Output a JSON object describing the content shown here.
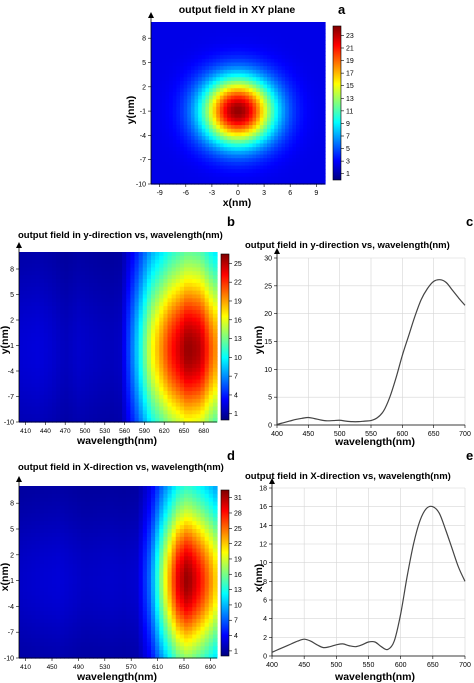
{
  "figure": {
    "colors": {
      "jet": [
        "#00007f",
        "#0000ff",
        "#007fff",
        "#00ffff",
        "#7fff7f",
        "#ffff00",
        "#ff7f00",
        "#ff0000",
        "#7f0000"
      ],
      "line": "#444444",
      "grid": "#d6d6d6"
    }
  },
  "panels": {
    "a": {
      "letter": "a",
      "chart_data": {
        "type": "heatmap",
        "title": "output field in XY plane",
        "xlabel": "x(nm)",
        "ylabel": "y(nm)",
        "x_ticks": [
          "-9",
          "-6",
          "-3",
          "0",
          "3",
          "6",
          "9"
        ],
        "y_ticks": [
          "8",
          "5",
          "2",
          "-1",
          "-4",
          "-7",
          "-10"
        ],
        "xlim": [
          -10,
          10
        ],
        "ylim": [
          -10,
          10
        ],
        "colorbar_ticks": [
          "23",
          "21",
          "19",
          "17",
          "15",
          "13",
          "11",
          "9",
          "7",
          "5",
          "3",
          "1"
        ],
        "colorbar_range": [
          0,
          24.5
        ],
        "field": {
          "shape": "gaussian",
          "center_x": 0,
          "center_y": -1,
          "sigma_x": 2.9,
          "sigma_y": 2.9,
          "peak": 24,
          "floor": 2.5
        }
      }
    },
    "b": {
      "letter": "b",
      "chart_data": {
        "type": "heatmap",
        "title": "output field in y-direction vs, wavelength(nm)",
        "xlabel": "wavelength(nm)",
        "ylabel": "y(nm)",
        "x_ticks": [
          "410",
          "440",
          "470",
          "500",
          "530",
          "560",
          "590",
          "620",
          "650",
          "680"
        ],
        "y_ticks": [
          "8",
          "5",
          "2",
          "-1",
          "-4",
          "-7",
          "-10"
        ],
        "xlim": [
          400,
          700
        ],
        "ylim": [
          -10,
          10
        ],
        "colorbar_ticks": [
          "25",
          "22",
          "19",
          "16",
          "13",
          "10",
          "7",
          "4",
          "1"
        ],
        "colorbar_range": [
          0,
          26.5
        ],
        "field": {
          "shape": "ridge",
          "center_y": -1.5,
          "sigma_y": 6.5,
          "peak": 26
        }
      }
    },
    "c": {
      "letter": "c",
      "chart_data": {
        "type": "line",
        "title": "output field in y-direction vs, wavelength(nm)",
        "xlabel": "wavelength(nm)",
        "ylabel": "y(nm)",
        "x_ticks": [
          "400",
          "450",
          "500",
          "550",
          "600",
          "650",
          "700"
        ],
        "y_ticks": [
          "0",
          "5",
          "10",
          "15",
          "20",
          "25",
          "30"
        ],
        "xlim": [
          400,
          700
        ],
        "ylim": [
          0,
          30
        ],
        "grid": true,
        "x": [
          400,
          410,
          420,
          430,
          440,
          450,
          460,
          470,
          480,
          490,
          500,
          510,
          520,
          530,
          540,
          550,
          560,
          570,
          580,
          590,
          600,
          610,
          620,
          630,
          640,
          650,
          660,
          670,
          680,
          690,
          700
        ],
        "y": [
          0.1,
          0.4,
          0.7,
          1.0,
          1.2,
          1.35,
          1.15,
          0.9,
          0.75,
          0.8,
          0.85,
          0.7,
          0.6,
          0.6,
          0.7,
          0.8,
          1.3,
          2.5,
          5.0,
          8.5,
          12.5,
          16.0,
          19.5,
          22.5,
          24.5,
          25.8,
          26.1,
          25.6,
          24.2,
          22.8,
          21.5
        ]
      }
    },
    "d": {
      "letter": "d",
      "chart_data": {
        "type": "heatmap",
        "title": "output field in X-direction vs, wavelength(nm)",
        "xlabel": "wavelength(nm)",
        "ylabel": "x(nm)",
        "x_ticks": [
          "410",
          "450",
          "490",
          "530",
          "570",
          "610",
          "650",
          "690"
        ],
        "y_ticks": [
          "8",
          "5",
          "2",
          "-1",
          "-4",
          "-7",
          "-10"
        ],
        "xlim": [
          400,
          700
        ],
        "ylim": [
          -10,
          10
        ],
        "colorbar_ticks": [
          "31",
          "28",
          "25",
          "22",
          "19",
          "16",
          "13",
          "10",
          "7",
          "4",
          "1"
        ],
        "colorbar_range": [
          0,
          32.5
        ],
        "field": {
          "shape": "ridge",
          "center_y": -1,
          "sigma_y": 6.0,
          "peak": 32
        }
      }
    },
    "e": {
      "letter": "e",
      "chart_data": {
        "type": "line",
        "title": "output field in X-direction vs, wavelength(nm)",
        "xlabel": "wavelength(nm)",
        "ylabel": "x(nm)",
        "x_ticks": [
          "400",
          "450",
          "500",
          "550",
          "600",
          "650",
          "700"
        ],
        "y_ticks": [
          "0",
          "2",
          "4",
          "6",
          "8",
          "10",
          "12",
          "14",
          "16",
          "18"
        ],
        "xlim": [
          400,
          700
        ],
        "ylim": [
          0,
          18
        ],
        "grid": true,
        "x": [
          400,
          410,
          420,
          430,
          440,
          450,
          460,
          470,
          480,
          490,
          500,
          510,
          520,
          530,
          540,
          550,
          560,
          570,
          580,
          590,
          600,
          610,
          620,
          630,
          640,
          650,
          660,
          670,
          680,
          690,
          700
        ],
        "y": [
          0.4,
          0.7,
          1.0,
          1.3,
          1.6,
          1.8,
          1.6,
          1.2,
          0.9,
          1.0,
          1.2,
          1.3,
          1.1,
          1.0,
          1.2,
          1.5,
          1.5,
          1.0,
          0.7,
          1.6,
          4.5,
          8.5,
          12.0,
          14.5,
          15.8,
          16.0,
          15.3,
          13.5,
          11.5,
          9.5,
          8.0
        ]
      }
    }
  }
}
